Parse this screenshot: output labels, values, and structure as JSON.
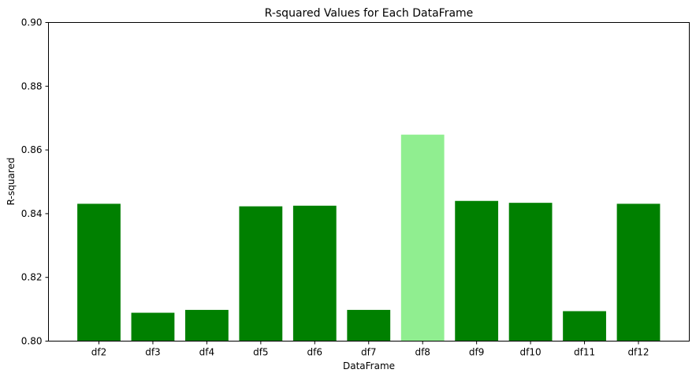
{
  "chart_data": {
    "type": "bar",
    "title": "R-squared Values for Each DataFrame",
    "xlabel": "DataFrame",
    "ylabel": "R-squared",
    "categories": [
      "df2",
      "df3",
      "df4",
      "df5",
      "df6",
      "df7",
      "df8",
      "df9",
      "df10",
      "df11",
      "df12"
    ],
    "values": [
      0.8431,
      0.8089,
      0.8098,
      0.8423,
      0.8425,
      0.8098,
      0.8648,
      0.844,
      0.8434,
      0.8094,
      0.8431
    ],
    "ylim": [
      0.8,
      0.9
    ],
    "yticks": [
      "0.80",
      "0.82",
      "0.84",
      "0.86",
      "0.88",
      "0.90"
    ],
    "grid": false,
    "colors": {
      "default": "#008000",
      "highlight": "#90ee90"
    },
    "highlight_category": "df8"
  }
}
